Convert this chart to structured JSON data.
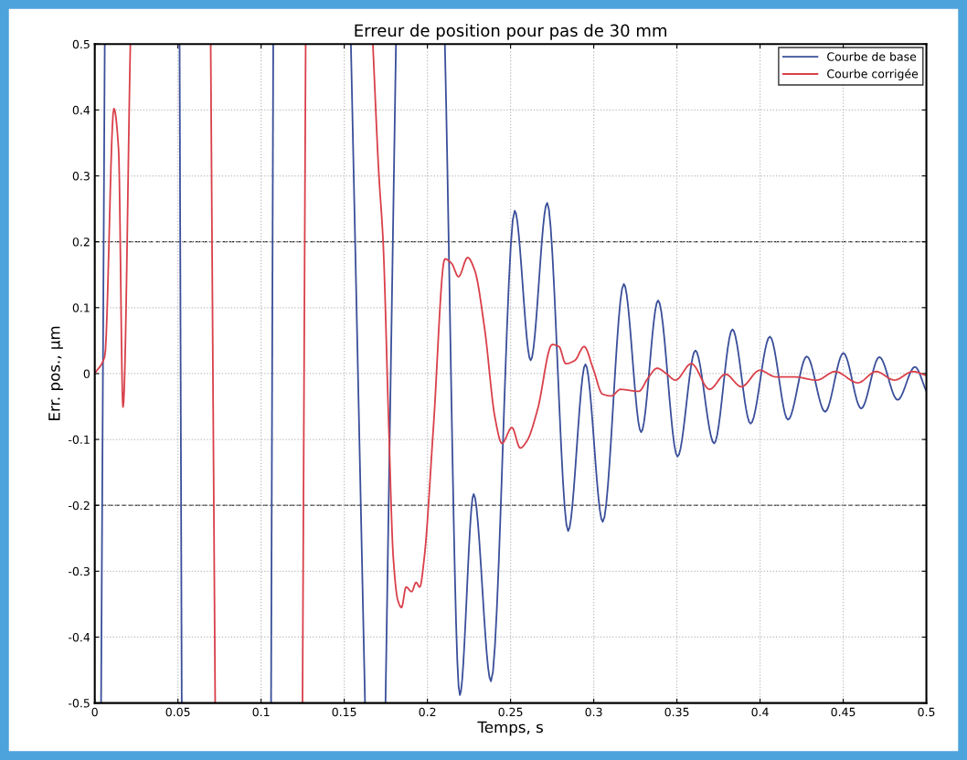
{
  "chart_data": {
    "type": "line",
    "title": "Erreur de position pour pas de 30 mm",
    "xlabel": "Temps, s",
    "ylabel": "Err. pos., µm",
    "xlim": [
      0,
      0.5
    ],
    "ylim": [
      -0.5,
      0.5
    ],
    "xticks": [
      0,
      0.05,
      0.1,
      0.15,
      0.2,
      0.25,
      0.3,
      0.35,
      0.4,
      0.45,
      0.5
    ],
    "yticks": [
      -0.5,
      -0.4,
      -0.3,
      -0.2,
      -0.1,
      0,
      0.1,
      0.2,
      0.3,
      0.4,
      0.5
    ],
    "grid": true,
    "legend": "top right",
    "line_style": "solid",
    "ref_lines": [
      {
        "axis": "y",
        "value": 0.2,
        "label": null,
        "color": "#222222",
        "line_style": "dashed"
      },
      {
        "axis": "y",
        "value": -0.2,
        "label": null,
        "color": "#555555",
        "line_style": "dashed"
      }
    ],
    "series": [
      {
        "name": "Courbe de base",
        "color": "#3a4f9a",
        "x": [
          0.0038,
          0.006
        ],
        "values": [
          -0.5,
          0.5
        ]
      },
      {
        "color": "#3a4f9a",
        "x": [
          0.051,
          0.0523
        ],
        "values": [
          0.5,
          -0.5
        ]
      },
      {
        "color": "#3a4f9a",
        "x": [
          0.106,
          0.1073
        ],
        "values": [
          -0.5,
          0.5
        ]
      },
      {
        "color": "#3a4f9a",
        "x": [
          0.154,
          0.1625
        ],
        "values": [
          0.5,
          -0.5
        ]
      },
      {
        "color": "#3a4f9a",
        "x": [
          0.1748,
          0.1811
        ],
        "values": [
          -0.5,
          0.5
        ]
      },
      {
        "color": "#3a4f9a",
        "x": [
          0.2105,
          0.2195,
          0.2278,
          0.2382,
          0.2525,
          0.2621,
          0.272,
          0.2846,
          0.295,
          0.3054,
          0.3181,
          0.3285,
          0.3387,
          0.3504,
          0.3611,
          0.3724,
          0.3834,
          0.3943,
          0.4059,
          0.4168,
          0.4281,
          0.4391,
          0.4501,
          0.4608,
          0.4717,
          0.4827,
          0.4931,
          0.5
        ],
        "values": [
          0.5,
          -0.488,
          -0.183,
          -0.467,
          0.247,
          0.02,
          0.259,
          -0.239,
          0.014,
          -0.225,
          0.136,
          -0.089,
          0.111,
          -0.126,
          0.035,
          -0.106,
          0.067,
          -0.076,
          0.056,
          -0.07,
          0.026,
          -0.058,
          0.031,
          -0.053,
          0.025,
          -0.04,
          0.01,
          -0.027
        ]
      },
      {
        "name": "Courbe corrigée",
        "color": "#d9404a",
        "x": [
          0,
          0.006,
          0.0115,
          0.0143,
          0.017,
          0.0214
        ],
        "values": [
          0,
          0.026,
          0.402,
          0.341,
          -0.051,
          0.5
        ]
      },
      {
        "color": "#d9404a",
        "x": [
          0.0697,
          0.0724
        ],
        "values": [
          0.5,
          -0.5
        ]
      },
      {
        "color": "#d9404a",
        "x": [
          0.1249,
          0.1268
        ],
        "values": [
          -0.5,
          0.5
        ]
      },
      {
        "color": "#d9404a",
        "x": [
          0.1672,
          0.1707,
          0.1734,
          0.1767,
          0.1795,
          0.1822,
          0.1844,
          0.1872,
          0.1905,
          0.1932,
          0.1954,
          0.1981,
          0.2036,
          0.2105,
          0.2146,
          0.2187,
          0.2242,
          0.2284,
          0.2344,
          0.2407,
          0.2448,
          0.2508,
          0.2558,
          0.2599,
          0.2662,
          0.275,
          0.2791,
          0.2832,
          0.2887,
          0.2942,
          0.2997,
          0.3052,
          0.3106,
          0.3161,
          0.3271,
          0.3326,
          0.3381,
          0.3436,
          0.3491,
          0.3587,
          0.3696,
          0.3792,
          0.3888,
          0.3998,
          0.4094,
          0.4204,
          0.4341,
          0.4451,
          0.4588,
          0.4698,
          0.4808,
          0.4918,
          0.5
        ],
        "values": [
          0.5,
          0.307,
          0.198,
          -0.075,
          -0.28,
          -0.344,
          -0.355,
          -0.324,
          -0.331,
          -0.317,
          -0.324,
          -0.28,
          -0.082,
          0.174,
          0.167,
          0.147,
          0.176,
          0.157,
          0.068,
          -0.068,
          -0.106,
          -0.082,
          -0.113,
          -0.102,
          -0.055,
          0.044,
          0.041,
          0.015,
          0.02,
          0.041,
          0.007,
          -0.031,
          -0.034,
          -0.024,
          -0.027,
          -0.007,
          0.008,
          0,
          -0.01,
          0.015,
          -0.024,
          -0.001,
          -0.02,
          0.005,
          -0.005,
          -0.005,
          -0.01,
          0.003,
          -0.014,
          0.003,
          -0.01,
          0.003,
          -0.003
        ]
      }
    ]
  }
}
